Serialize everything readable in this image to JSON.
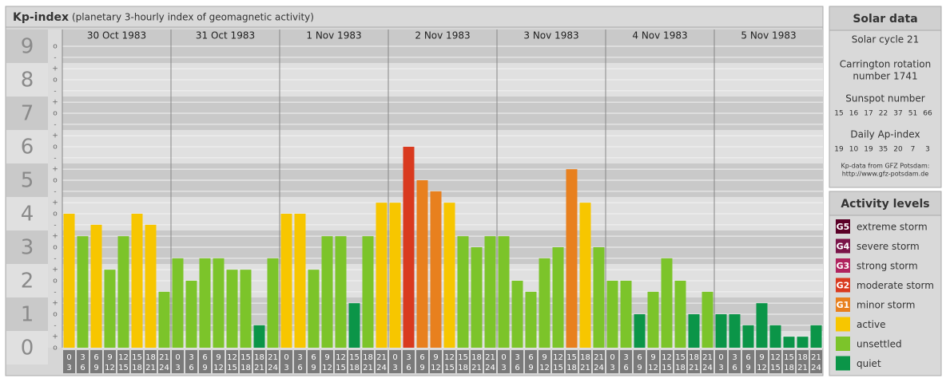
{
  "chart_data": {
    "type": "bar",
    "title": "Kp-index",
    "subtitle": "(planetary 3-hourly index of geomagnetic activity)",
    "ylim": [
      0,
      9
    ],
    "yticks": [
      0,
      1,
      2,
      3,
      4,
      5,
      6,
      7,
      8,
      9
    ],
    "minor_ticks": [
      {
        "value": 0,
        "label": "o"
      },
      {
        "value": 0.33,
        "label": "+"
      },
      {
        "value": 0.67,
        "label": "-"
      },
      {
        "value": 1,
        "label": "o"
      },
      {
        "value": 1.33,
        "label": "+"
      },
      {
        "value": 1.67,
        "label": "-"
      },
      {
        "value": 2,
        "label": "o"
      },
      {
        "value": 2.33,
        "label": "+"
      },
      {
        "value": 2.67,
        "label": "-"
      },
      {
        "value": 3,
        "label": "o"
      },
      {
        "value": 3.33,
        "label": "+"
      },
      {
        "value": 3.67,
        "label": "-"
      },
      {
        "value": 4,
        "label": "o"
      },
      {
        "value": 4.33,
        "label": "+"
      },
      {
        "value": 4.67,
        "label": "-"
      },
      {
        "value": 5,
        "label": "o"
      },
      {
        "value": 5.33,
        "label": "+"
      },
      {
        "value": 5.67,
        "label": "-"
      },
      {
        "value": 6,
        "label": "o"
      },
      {
        "value": 6.33,
        "label": "+"
      },
      {
        "value": 6.67,
        "label": "-"
      },
      {
        "value": 7,
        "label": "o"
      },
      {
        "value": 7.33,
        "label": "+"
      },
      {
        "value": 7.67,
        "label": "-"
      },
      {
        "value": 8,
        "label": "o"
      },
      {
        "value": 8.33,
        "label": "+"
      },
      {
        "value": 8.67,
        "label": "-"
      },
      {
        "value": 9,
        "label": "o"
      }
    ],
    "slots": [
      [
        "0",
        "3"
      ],
      [
        "3",
        "6"
      ],
      [
        "6",
        "9"
      ],
      [
        "9",
        "12"
      ],
      [
        "12",
        "15"
      ],
      [
        "15",
        "18"
      ],
      [
        "18",
        "21"
      ],
      [
        "21",
        "24"
      ]
    ],
    "days": [
      {
        "date": "30 Oct 1983",
        "values": [
          4,
          3.33,
          3.67,
          2.33,
          3.33,
          4,
          3.67,
          1.67
        ],
        "colors": [
          "#f7c600",
          "#7cc42a",
          "#f7c600",
          "#7cc42a",
          "#7cc42a",
          "#f7c600",
          "#f7c600",
          "#7cc42a"
        ]
      },
      {
        "date": "31 Oct 1983",
        "values": [
          2.67,
          2,
          2.67,
          2.67,
          2.33,
          2.33,
          0.67,
          2.67
        ],
        "colors": [
          "#7cc42a",
          "#7cc42a",
          "#7cc42a",
          "#7cc42a",
          "#7cc42a",
          "#7cc42a",
          "#0b9548",
          "#7cc42a"
        ]
      },
      {
        "date": "1 Nov 1983",
        "values": [
          4,
          4,
          2.33,
          3.33,
          3.33,
          1.33,
          3.33,
          4.33
        ],
        "colors": [
          "#f7c600",
          "#f7c600",
          "#7cc42a",
          "#7cc42a",
          "#7cc42a",
          "#0b9548",
          "#7cc42a",
          "#f7c600"
        ]
      },
      {
        "date": "2 Nov 1983",
        "values": [
          4.33,
          6,
          5,
          4.67,
          4.33,
          3.33,
          3,
          3.33
        ],
        "colors": [
          "#f7c600",
          "#d93a1f",
          "#e8801e",
          "#e8801e",
          "#f7c600",
          "#7cc42a",
          "#7cc42a",
          "#7cc42a"
        ]
      },
      {
        "date": "3 Nov 1983",
        "values": [
          3.33,
          2,
          1.67,
          2.67,
          3,
          5.33,
          4.33,
          3
        ],
        "colors": [
          "#7cc42a",
          "#7cc42a",
          "#7cc42a",
          "#7cc42a",
          "#7cc42a",
          "#e8801e",
          "#f7c600",
          "#7cc42a"
        ]
      },
      {
        "date": "4 Nov 1983",
        "values": [
          2,
          2,
          1,
          1.67,
          2.67,
          2,
          1,
          1.67
        ],
        "colors": [
          "#7cc42a",
          "#7cc42a",
          "#0b9548",
          "#7cc42a",
          "#7cc42a",
          "#7cc42a",
          "#0b9548",
          "#7cc42a"
        ]
      },
      {
        "date": "5 Nov 1983",
        "values": [
          1,
          1,
          0.67,
          1.33,
          0.67,
          0.33,
          0.33,
          0.67
        ],
        "colors": [
          "#0b9548",
          "#0b9548",
          "#0b9548",
          "#0b9548",
          "#0b9548",
          "#0b9548",
          "#0b9548",
          "#0b9548"
        ]
      }
    ],
    "solar": {
      "heading": "Solar data",
      "cycle": "Solar cycle 21",
      "carrington": [
        "Carrington rotation",
        "number 1741"
      ],
      "sunspot_label": "Sunspot number",
      "sunspot": [
        15,
        16,
        17,
        22,
        37,
        51,
        66
      ],
      "ap_label": "Daily Ap-index",
      "ap": [
        19,
        10,
        19,
        35,
        20,
        7,
        3
      ],
      "source": [
        "Kp-data from GFZ Potsdam:",
        "http://www.gfz-potsdam.de"
      ]
    },
    "legend": {
      "heading": "Activity levels",
      "items": [
        {
          "badge": "G5",
          "name": "extreme storm",
          "color": "#5a0026"
        },
        {
          "badge": "G4",
          "name": "severe storm",
          "color": "#7a1448"
        },
        {
          "badge": "G3",
          "name": "strong storm",
          "color": "#b0235e"
        },
        {
          "badge": "G2",
          "name": "moderate storm",
          "color": "#d93a1f"
        },
        {
          "badge": "G1",
          "name": "minor storm",
          "color": "#e8801e"
        },
        {
          "name": "active",
          "color": "#f7c600"
        },
        {
          "name": "unsettled",
          "color": "#7cc42a"
        },
        {
          "name": "quiet",
          "color": "#0b9548"
        }
      ]
    }
  }
}
